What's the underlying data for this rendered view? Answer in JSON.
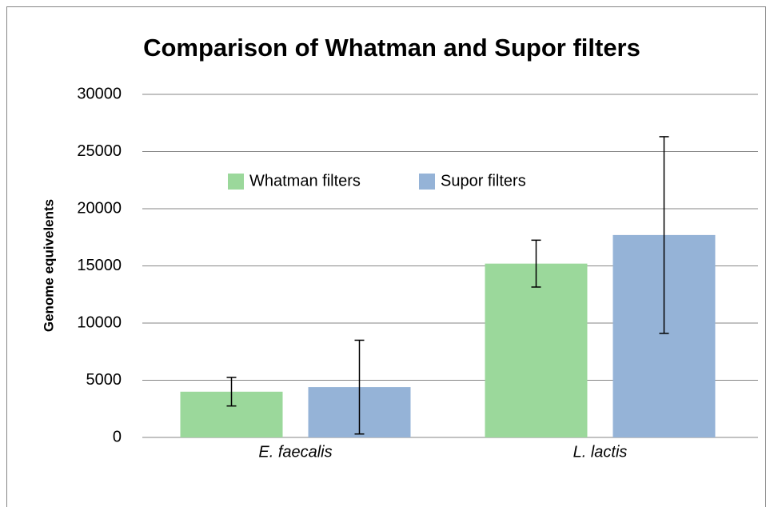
{
  "chart_data": {
    "type": "bar",
    "title": "Comparison of Whatman and Supor filters",
    "ylabel": "Genome equivelents",
    "categories": [
      "E. faecalis",
      "L. lactis"
    ],
    "series": [
      {
        "name": "Whatman filters",
        "color": "#9bd89b",
        "values": [
          4000,
          15200
        ],
        "errors": [
          1250,
          2050
        ]
      },
      {
        "name": "Supor filters",
        "color": "#95b3d7",
        "values": [
          4400,
          17700
        ],
        "errors": [
          4100,
          8600
        ]
      }
    ],
    "ylim": [
      0,
      30000
    ],
    "yticks": [
      0,
      5000,
      10000,
      15000,
      20000,
      25000,
      30000
    ],
    "grid": true,
    "legend": "top"
  }
}
